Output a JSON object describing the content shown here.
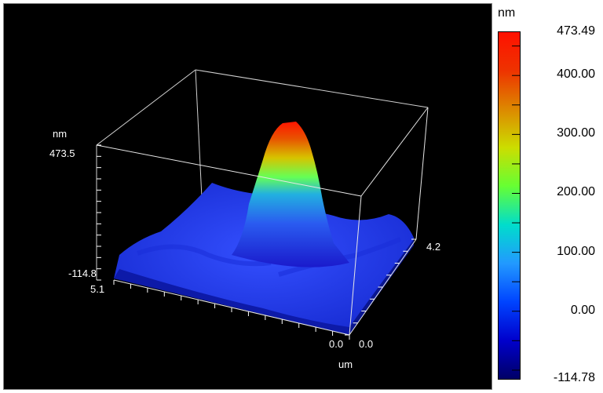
{
  "chart_data": {
    "type": "surface3d",
    "units": {
      "z": "nm",
      "xy": "um"
    },
    "z_range": [
      -114.8,
      473.5
    ],
    "x_range": [
      0.0,
      5.1
    ],
    "y_range": [
      0.0,
      4.2
    ],
    "axis_labels": {
      "z_unit": "nm",
      "z_max": "473.5",
      "z_min": "-114.8",
      "x_max": "5.1",
      "x_origin": "0.0",
      "y_origin": "0.0",
      "y_max": "4.2",
      "xy_unit": "um"
    },
    "colorbar": {
      "title": "nm",
      "min": -114.78,
      "max": 473.49,
      "labels": [
        "473.49",
        "400.00",
        "300.00",
        "200.00",
        "100.00",
        "0.00",
        "-114.78"
      ],
      "label_values": [
        473.49,
        400,
        300,
        200,
        100,
        0,
        -114.78
      ],
      "colors": [
        "#000066",
        "#0000cc",
        "#0044ff",
        "#2299ff",
        "#00ddcc",
        "#66ff33",
        "#ccdd00",
        "#dd8800",
        "#ee3300",
        "#ff1100"
      ]
    },
    "surface": {
      "base_level": -40,
      "peak": {
        "x": 2.6,
        "y": 2.3,
        "height": 473.5,
        "sigma_x": 0.55,
        "sigma_y": 0.5
      }
    }
  }
}
